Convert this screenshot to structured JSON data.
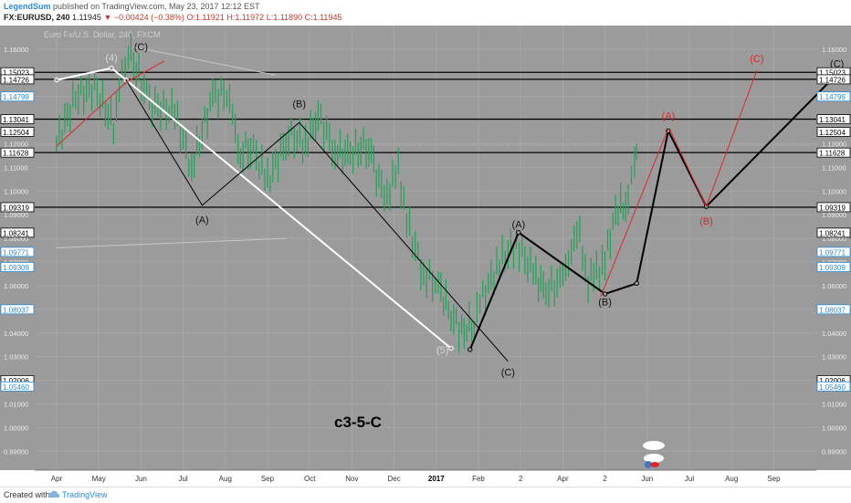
{
  "header": {
    "author": "LegendSum",
    "published": "published on TradingView.com, May 23, 2017 12:12 EST",
    "symbol": "FX:EURUSD, 240",
    "last": "1.11945",
    "change": "▼ −0.00424 (−0.38%)",
    "ohlc_o": "O:1.11921",
    "ohlc_h": "H:1.11972",
    "ohlc_l": "L:1.11890",
    "ohlc_c": "C:1.11945"
  },
  "watermark": "Euro Fx/U.S. Dollar, 240, FXCM",
  "chart_title": "c3-5-C",
  "footer": {
    "created": "Created with",
    "brand": "TradingView"
  },
  "colors": {
    "background": "#9b9b9b",
    "candle_up": "#27a35a",
    "wave_black": "#000000",
    "wave_white": "#ffffff",
    "wave_red": "#e0262a",
    "price_tag_blue": "#2a8ad8"
  },
  "chart_data": {
    "type": "line",
    "ylim": [
      0.982,
      1.17
    ],
    "x_ticks": [
      "Apr",
      "May",
      "Jun",
      "Jul",
      "Aug",
      "Sep",
      "Oct",
      "Nov",
      "Dec",
      "2017",
      "Feb",
      "2",
      "Apr",
      "2",
      "Jun",
      "Jul",
      "Aug",
      "Sep"
    ],
    "y_ticks": [
      1.16,
      1.15,
      1.14,
      1.13,
      1.12,
      1.11,
      1.1,
      1.09,
      1.08,
      1.07,
      1.06,
      1.05,
      1.04,
      1.03,
      1.02,
      1.01,
      1.0,
      0.99
    ],
    "left_price_tags": [
      {
        "label": "1.15023",
        "value": 1.15023,
        "style": "black"
      },
      {
        "label": "1.14726",
        "value": 1.14726,
        "style": "black"
      },
      {
        "label": "1.14799",
        "value": 1.14,
        "style": "blue"
      },
      {
        "label": "1.13041",
        "value": 1.13041,
        "style": "black"
      },
      {
        "label": "1.12504",
        "value": 1.12504,
        "style": "black"
      },
      {
        "label": "1.11628",
        "value": 1.11628,
        "style": "black"
      },
      {
        "label": "1.09319",
        "value": 1.09319,
        "style": "black"
      },
      {
        "label": "1.08241",
        "value": 1.08241,
        "style": "black"
      },
      {
        "label": "1.09771",
        "value": 1.07429,
        "style": "blue"
      },
      {
        "label": "1.09309",
        "value": 1.0679,
        "style": "blue"
      },
      {
        "label": "1.08037",
        "value": 1.05,
        "style": "blue"
      },
      {
        "label": "1.02006",
        "value": 1.02006,
        "style": "black"
      },
      {
        "label": "1.05460",
        "value": 1.0174,
        "style": "blue"
      }
    ],
    "right_price_tags": [
      {
        "label": "1.15023",
        "value": 1.15023,
        "style": "black"
      },
      {
        "label": "1.14726",
        "value": 1.14726,
        "style": "black"
      },
      {
        "label": "1.14799",
        "value": 1.14,
        "style": "blue"
      },
      {
        "label": "1.13041",
        "value": 1.13041,
        "style": "black"
      },
      {
        "label": "1.12504",
        "value": 1.12504,
        "style": "black"
      },
      {
        "label": "1.11628",
        "value": 1.11628,
        "style": "black"
      },
      {
        "label": "1.09319",
        "value": 1.09319,
        "style": "black"
      },
      {
        "label": "1.08241",
        "value": 1.08241,
        "style": "black"
      },
      {
        "label": "1.09771",
        "value": 1.07429,
        "style": "blue"
      },
      {
        "label": "1.09309",
        "value": 1.0679,
        "style": "blue"
      },
      {
        "label": "1.08037",
        "value": 1.05,
        "style": "blue"
      },
      {
        "label": "1.02006",
        "value": 1.02006,
        "style": "black"
      },
      {
        "label": "1.05460",
        "value": 1.0174,
        "style": "blue"
      }
    ],
    "horizontal_levels": [
      1.15023,
      1.14726,
      1.13041,
      1.11628,
      1.09319
    ],
    "dotted_levels": [
      1.11945
    ],
    "series": [
      {
        "name": "EURUSD",
        "color": "#27a35a",
        "points": [
          {
            "x": 0.0,
            "y": 1.12
          },
          {
            "x": 0.45,
            "y": 1.14
          },
          {
            "x": 0.9,
            "y": 1.144
          },
          {
            "x": 1.35,
            "y": 1.128
          },
          {
            "x": 1.55,
            "y": 1.147
          },
          {
            "x": 1.7,
            "y": 1.16
          },
          {
            "x": 2.2,
            "y": 1.137
          },
          {
            "x": 2.8,
            "y": 1.133
          },
          {
            "x": 3.2,
            "y": 1.11
          },
          {
            "x": 3.7,
            "y": 1.14
          },
          {
            "x": 4.1,
            "y": 1.142
          },
          {
            "x": 4.3,
            "y": 1.114
          },
          {
            "x": 4.6,
            "y": 1.12
          },
          {
            "x": 5.0,
            "y": 1.104
          },
          {
            "x": 5.5,
            "y": 1.124
          },
          {
            "x": 5.9,
            "y": 1.12
          },
          {
            "x": 6.2,
            "y": 1.132
          },
          {
            "x": 6.6,
            "y": 1.117
          },
          {
            "x": 6.9,
            "y": 1.115
          },
          {
            "x": 7.4,
            "y": 1.12
          },
          {
            "x": 7.7,
            "y": 1.099
          },
          {
            "x": 7.9,
            "y": 1.101
          },
          {
            "x": 8.1,
            "y": 1.11
          },
          {
            "x": 8.3,
            "y": 1.087
          },
          {
            "x": 8.7,
            "y": 1.065
          },
          {
            "x": 9.05,
            "y": 1.06
          },
          {
            "x": 9.35,
            "y": 1.048
          },
          {
            "x": 9.6,
            "y": 1.04
          },
          {
            "x": 9.9,
            "y": 1.045
          },
          {
            "x": 10.1,
            "y": 1.055
          },
          {
            "x": 10.5,
            "y": 1.07
          },
          {
            "x": 10.9,
            "y": 1.078
          },
          {
            "x": 11.3,
            "y": 1.065
          },
          {
            "x": 11.6,
            "y": 1.058
          },
          {
            "x": 12.0,
            "y": 1.062
          },
          {
            "x": 12.2,
            "y": 1.078
          },
          {
            "x": 12.4,
            "y": 1.08
          },
          {
            "x": 12.6,
            "y": 1.062
          },
          {
            "x": 12.8,
            "y": 1.066
          },
          {
            "x": 13.0,
            "y": 1.07
          },
          {
            "x": 13.25,
            "y": 1.092
          },
          {
            "x": 13.55,
            "y": 1.095
          },
          {
            "x": 13.7,
            "y": 1.115
          },
          {
            "x": 13.8,
            "y": 1.119
          }
        ]
      }
    ],
    "wave_labels": [
      {
        "text": "(4)",
        "x": 1.3,
        "y": 1.155,
        "color": "gray"
      },
      {
        "text": "(C)",
        "x": 2.0,
        "y": 1.1595,
        "color": "black"
      },
      {
        "text": "(A)",
        "x": 3.45,
        "y": 1.0865,
        "color": "black"
      },
      {
        "text": "(B)",
        "x": 5.75,
        "y": 1.1355,
        "color": "black"
      },
      {
        "text": "(5)",
        "x": 9.15,
        "y": 1.0315,
        "color": "gray"
      },
      {
        "text": "(C)",
        "x": 10.7,
        "y": 1.022,
        "color": "black"
      },
      {
        "text": "(A)",
        "x": 10.95,
        "y": 1.0845,
        "color": "black"
      },
      {
        "text": "(B)",
        "x": 13.0,
        "y": 1.0517,
        "color": "black"
      },
      {
        "text": "(A)",
        "x": 14.5,
        "y": 1.1305,
        "color": "red"
      },
      {
        "text": "(B)",
        "x": 15.4,
        "y": 1.0858,
        "color": "red"
      },
      {
        "text": "(C)",
        "x": 16.6,
        "y": 1.1545,
        "color": "red"
      },
      {
        "text": "(C)",
        "x": 18.5,
        "y": 1.1525,
        "color": "black"
      }
    ],
    "wave_paths": [
      {
        "color": "white",
        "width": 2,
        "points": [
          {
            "x": 0.0,
            "y": 1.147
          },
          {
            "x": 1.3,
            "y": 1.152
          },
          {
            "x": 1.65,
            "y": 1.147
          },
          {
            "x": 9.35,
            "y": 1.0335
          }
        ]
      },
      {
        "color": "black",
        "width": 1,
        "points": [
          {
            "x": 1.65,
            "y": 1.147
          },
          {
            "x": 3.45,
            "y": 1.094
          },
          {
            "x": 5.75,
            "y": 1.129
          },
          {
            "x": 10.7,
            "y": 1.028
          }
        ]
      },
      {
        "color": "red",
        "width": 1,
        "points": [
          {
            "x": 0.0,
            "y": 1.119
          },
          {
            "x": 1.65,
            "y": 1.146
          },
          {
            "x": 2.55,
            "y": 1.155
          }
        ]
      },
      {
        "color": "black",
        "width": 2,
        "points": [
          {
            "x": 9.8,
            "y": 1.033
          },
          {
            "x": 10.95,
            "y": 1.0825
          },
          {
            "x": 13.0,
            "y": 1.0565
          },
          {
            "x": 13.75,
            "y": 1.061
          },
          {
            "x": 14.5,
            "y": 1.1255
          },
          {
            "x": 15.4,
            "y": 1.0935
          },
          {
            "x": 18.5,
            "y": 1.1495
          }
        ]
      },
      {
        "color": "red",
        "width": 1,
        "points": [
          {
            "x": 12.9,
            "y": 1.0555
          },
          {
            "x": 14.5,
            "y": 1.1265
          }
        ]
      },
      {
        "color": "red",
        "width": 1,
        "points": [
          {
            "x": 14.55,
            "y": 1.1255
          },
          {
            "x": 15.4,
            "y": 1.0935
          },
          {
            "x": 16.6,
            "y": 1.151
          }
        ]
      },
      {
        "color": "gray",
        "width": 1,
        "points": [
          {
            "x": 0.0,
            "y": 1.076
          },
          {
            "x": 5.45,
            "y": 1.08
          }
        ]
      },
      {
        "color": "gray",
        "width": 1,
        "points": [
          {
            "x": 1.8,
            "y": 1.161
          },
          {
            "x": 5.2,
            "y": 1.149
          }
        ]
      }
    ]
  }
}
